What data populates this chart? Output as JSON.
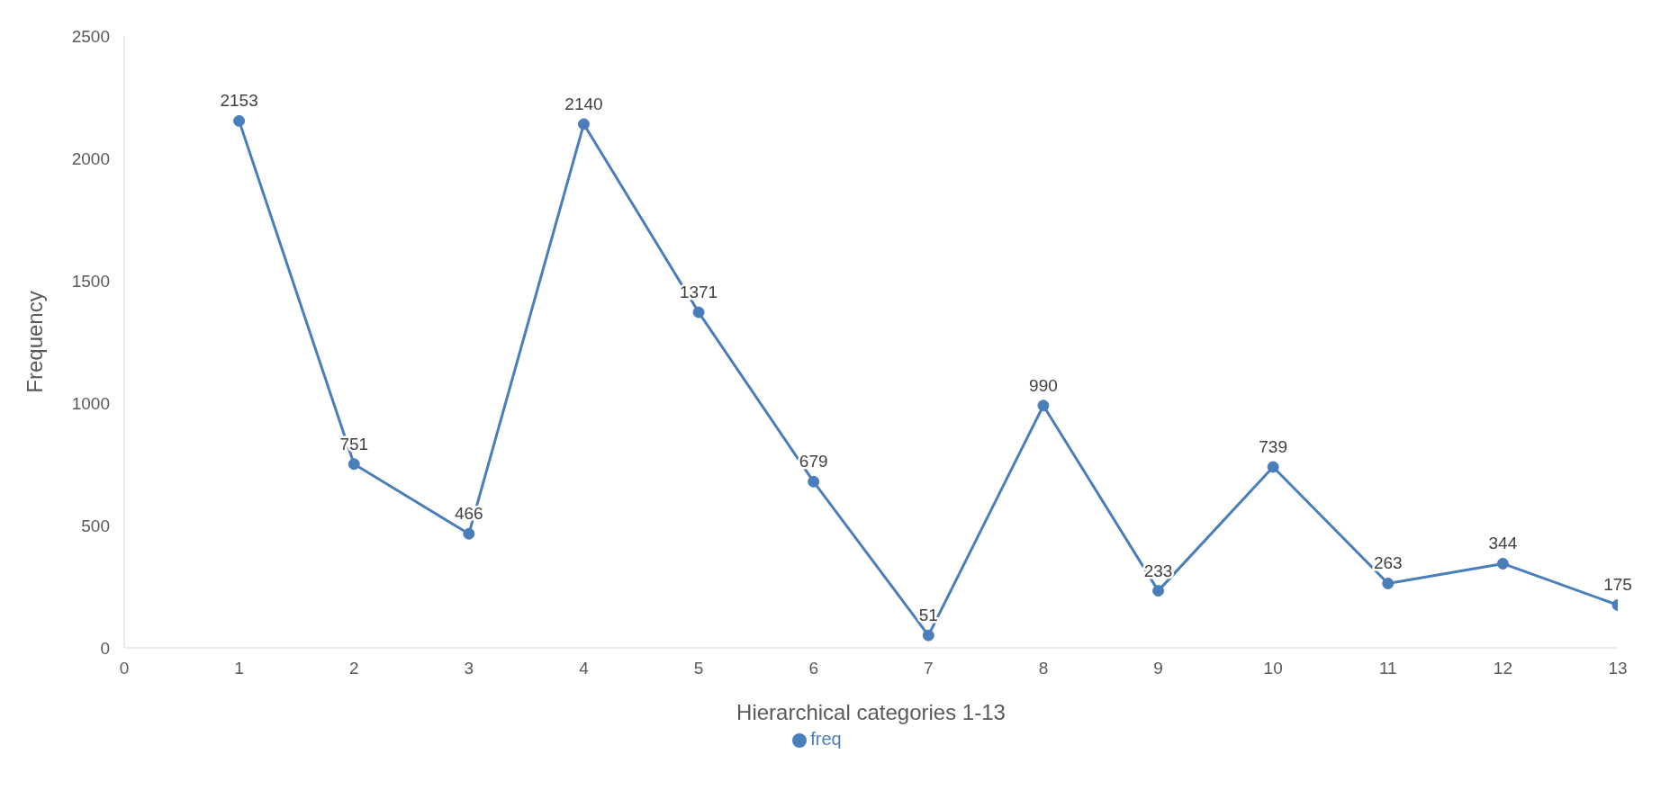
{
  "chart_data": {
    "type": "line",
    "xlabel": "Hierarchical categories 1-13",
    "ylabel": "Frequency",
    "x": [
      1,
      2,
      3,
      4,
      5,
      6,
      7,
      8,
      9,
      10,
      11,
      12,
      13
    ],
    "series": [
      {
        "name": "freq",
        "color": "#4a7ebb",
        "values": [
          2153,
          751,
          466,
          2140,
          1371,
          679,
          51,
          990,
          233,
          739,
          263,
          344,
          175
        ]
      }
    ],
    "xlim": [
      0,
      13
    ],
    "xticks": [
      0,
      1,
      2,
      3,
      4,
      5,
      6,
      7,
      8,
      9,
      10,
      11,
      12,
      13
    ],
    "ylim": [
      0,
      2500
    ],
    "yticks": [
      0,
      500,
      1000,
      1500,
      2000,
      2500
    ],
    "grid": false,
    "legend": "bottom",
    "marker": "circle",
    "line_style": "solid",
    "data_labels": true
  }
}
